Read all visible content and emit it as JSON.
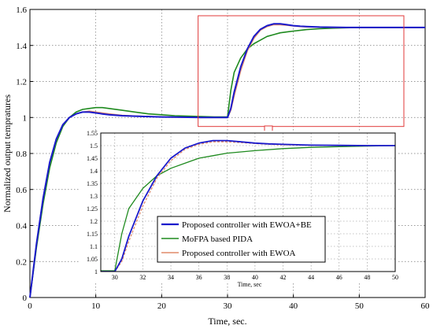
{
  "chart_data": {
    "type": "line",
    "xlabel": "Time, sec.",
    "ylabel": "Normalized output tempratures",
    "xlim": [
      0,
      60
    ],
    "ylim": [
      0,
      1.6
    ],
    "xticks": [
      "0",
      "10",
      "20",
      "30",
      "40",
      "50",
      "60"
    ],
    "yticks": [
      "0",
      "0.2",
      "0.4",
      "0.6",
      "0.8",
      "1",
      "1.2",
      "1.4",
      "1.6"
    ],
    "grid": true,
    "colors": {
      "ewoa_be": "#1a1acc",
      "mofpa": "#1e8a1e",
      "ewoa": "#e08a6a",
      "zoom_box": "#e03a3a"
    },
    "series": [
      {
        "name": "Proposed controller with EWOA+BE",
        "color": "#1a1acc",
        "x": [
          0,
          1,
          2,
          3,
          4,
          5,
          6,
          7,
          8,
          9,
          10,
          11,
          12,
          14,
          16,
          18,
          20,
          22,
          24,
          26,
          28,
          30,
          30.5,
          31,
          32,
          33,
          34,
          35,
          36,
          37,
          38,
          39,
          40,
          41,
          42,
          44,
          46,
          48,
          50,
          55,
          60
        ],
        "y": [
          0,
          0.3,
          0.55,
          0.75,
          0.88,
          0.96,
          1.0,
          1.02,
          1.03,
          1.03,
          1.025,
          1.02,
          1.015,
          1.01,
          1.007,
          1.005,
          1.003,
          1.002,
          1.001,
          1.0,
          1.0,
          1.0,
          1.05,
          1.14,
          1.28,
          1.38,
          1.45,
          1.49,
          1.51,
          1.52,
          1.52,
          1.515,
          1.51,
          1.507,
          1.505,
          1.502,
          1.501,
          1.5,
          1.5,
          1.5,
          1.5
        ]
      },
      {
        "name": "MoFPA based PIDA",
        "color": "#1e8a1e",
        "x": [
          0,
          1,
          2,
          3,
          4,
          5,
          6,
          7,
          8,
          9,
          10,
          11,
          12,
          14,
          16,
          18,
          20,
          22,
          24,
          26,
          28,
          30,
          30.5,
          31,
          32,
          33,
          34,
          35,
          36,
          37,
          38,
          39,
          40,
          42,
          44,
          46,
          48,
          50,
          55,
          60
        ],
        "y": [
          0,
          0.28,
          0.52,
          0.72,
          0.86,
          0.95,
          1.0,
          1.03,
          1.045,
          1.05,
          1.055,
          1.055,
          1.05,
          1.04,
          1.03,
          1.02,
          1.015,
          1.01,
          1.007,
          1.005,
          1.003,
          1.003,
          1.15,
          1.25,
          1.33,
          1.38,
          1.41,
          1.43,
          1.45,
          1.46,
          1.47,
          1.475,
          1.48,
          1.488,
          1.493,
          1.496,
          1.498,
          1.5,
          1.5,
          1.5
        ]
      },
      {
        "name": "Proposed controller with EWOA",
        "color": "#e08a6a",
        "x": [
          0,
          1,
          2,
          3,
          4,
          5,
          6,
          7,
          8,
          9,
          10,
          11,
          12,
          14,
          16,
          18,
          20,
          22,
          24,
          26,
          28,
          30,
          30.5,
          31,
          32,
          33,
          34,
          35,
          36,
          37,
          38,
          39,
          40,
          41,
          42,
          44,
          46,
          48,
          50,
          55,
          60
        ],
        "y": [
          0,
          0.3,
          0.55,
          0.75,
          0.88,
          0.96,
          1.0,
          1.02,
          1.03,
          1.035,
          1.03,
          1.025,
          1.02,
          1.012,
          1.008,
          1.005,
          1.003,
          1.002,
          1.001,
          1.0,
          1.0,
          1.0,
          1.04,
          1.12,
          1.26,
          1.37,
          1.44,
          1.485,
          1.505,
          1.515,
          1.515,
          1.512,
          1.508,
          1.505,
          1.503,
          1.501,
          1.5,
          1.5,
          1.5,
          1.5,
          1.5
        ]
      }
    ],
    "inset": {
      "xlim": [
        29,
        50
      ],
      "ylim": [
        1.0,
        1.55
      ],
      "xticks": [
        "30",
        "32",
        "34",
        "36",
        "38",
        "40",
        "42",
        "44",
        "46",
        "48",
        "50"
      ],
      "yticks": [
        "1",
        "1.05",
        "1.1",
        "1.15",
        "1.2",
        "1.25",
        "1.3",
        "1.35",
        "1.4",
        "1.45",
        "1.5",
        "1.55"
      ],
      "xlabel": "Time, sec",
      "grid": true,
      "legend": {
        "placement": "lower-right",
        "entries": [
          "Proposed controller with EWOA+BE",
          "MoFPA based PIDA",
          "Proposed controller with EWOA"
        ]
      }
    },
    "zoom_box": {
      "xlim": [
        29,
        60
      ],
      "ylim": [
        0.95,
        1.6
      ]
    }
  }
}
